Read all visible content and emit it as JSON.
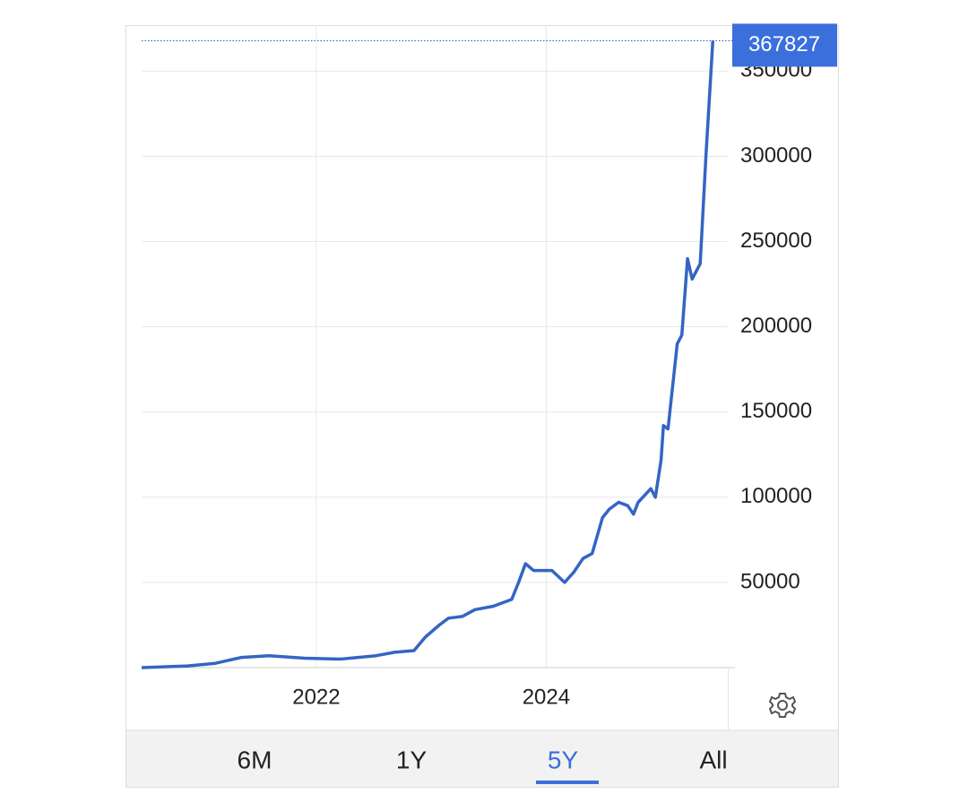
{
  "chart_data": {
    "type": "line",
    "color": "#3464c4",
    "x": [
      2020.48,
      2020.88,
      2021.12,
      2021.35,
      2021.59,
      2021.9,
      2022.21,
      2022.52,
      2022.68,
      2022.85,
      2022.95,
      2023.07,
      2023.15,
      2023.27,
      2023.38,
      2023.54,
      2023.7,
      2023.76,
      2023.82,
      2023.89,
      2024.05,
      2024.16,
      2024.24,
      2024.32,
      2024.4,
      2024.49,
      2024.55,
      2024.63,
      2024.71,
      2024.76,
      2024.8,
      2024.91,
      2024.95,
      2025.0,
      2025.02,
      2025.06,
      2025.14,
      2025.18,
      2025.23,
      2025.27,
      2025.34,
      2025.39,
      2025.45
    ],
    "values": [
      0,
      1000,
      2500,
      6000,
      7000,
      5500,
      5000,
      7000,
      9000,
      10000,
      18000,
      25000,
      29000,
      30000,
      34000,
      36000,
      40000,
      50000,
      61000,
      57000,
      57000,
      50000,
      56000,
      64000,
      67000,
      88000,
      93000,
      97000,
      95000,
      90000,
      97000,
      105000,
      100000,
      122000,
      142000,
      140000,
      190000,
      195000,
      240000,
      228000,
      237000,
      300000,
      367827
    ],
    "xlim": [
      2020.48,
      2025.58
    ],
    "xticks": [
      2022,
      2024
    ],
    "ylim": [
      0,
      377000
    ],
    "yticks": [
      50000,
      100000,
      150000,
      200000,
      250000,
      300000,
      350000
    ],
    "grid": true
  },
  "range_buttons": [
    {
      "label": "6M"
    },
    {
      "label": "1Y"
    },
    {
      "label": "5Y",
      "active": true
    },
    {
      "label": "All"
    }
  ]
}
